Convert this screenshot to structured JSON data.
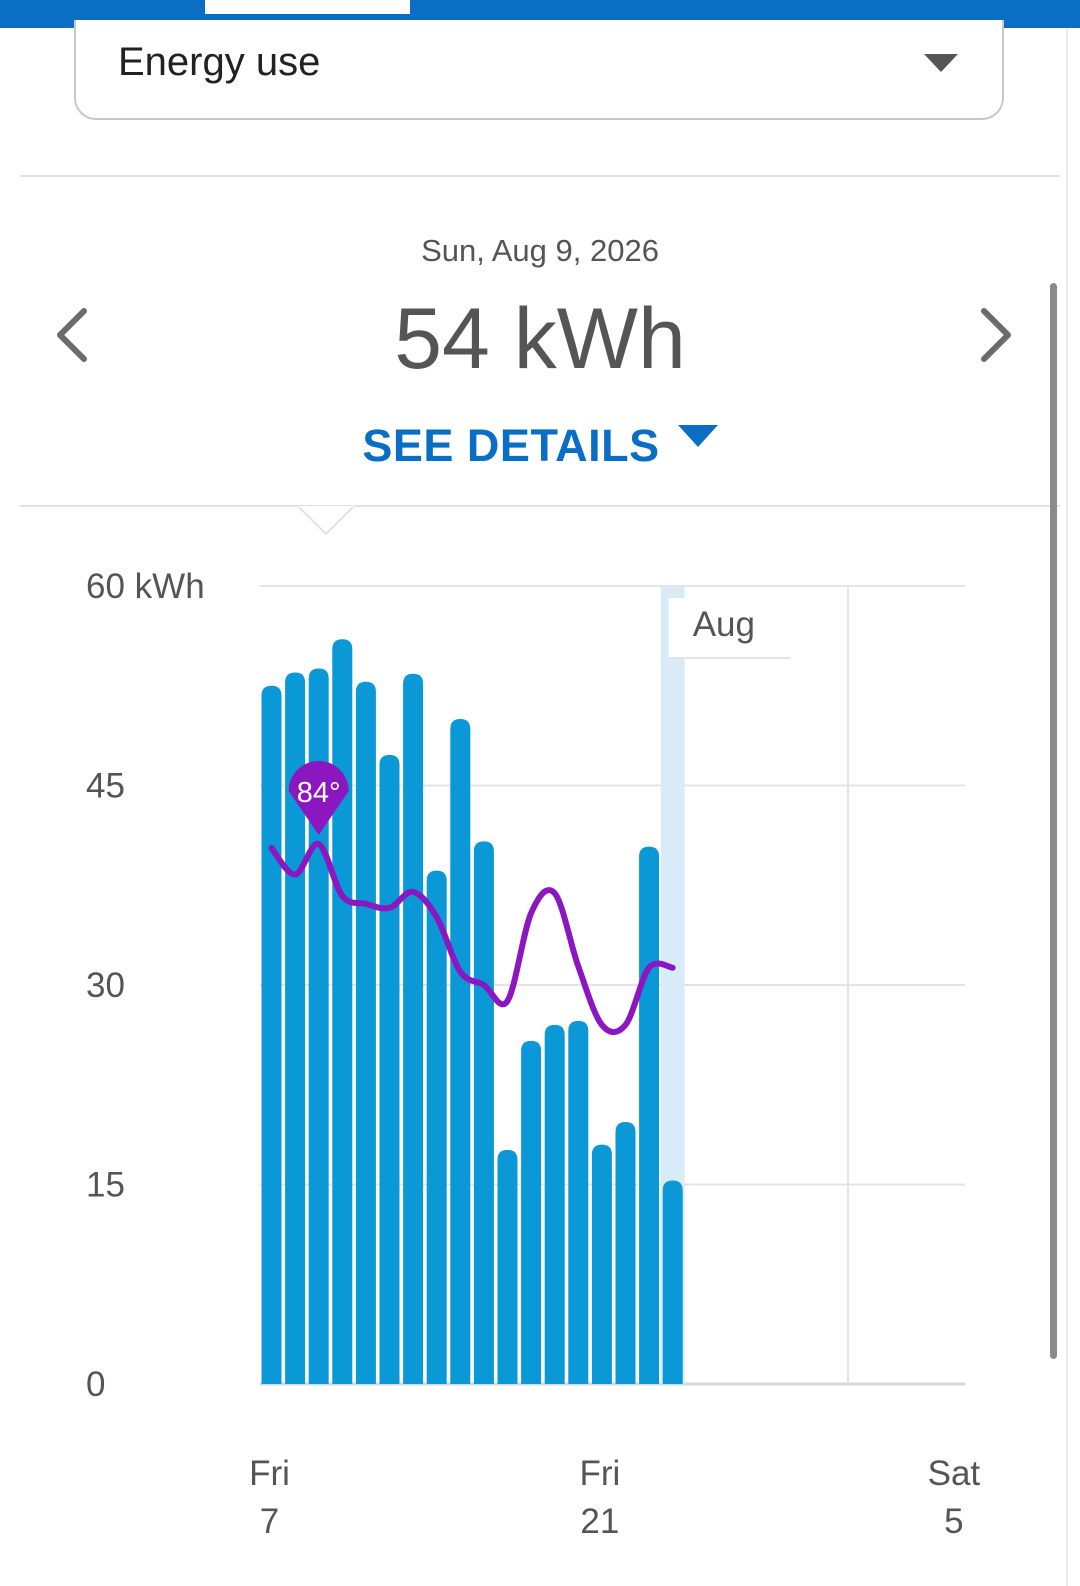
{
  "header": {
    "selector_label": "Energy use"
  },
  "summary": {
    "date": "Sun, Aug 9, 2026",
    "value": "54 kWh",
    "see_details": "SEE DETAILS"
  },
  "colors": {
    "accent": "#0a6fc4",
    "bar": "#0a98d6",
    "temperature_line": "#8c16c0",
    "highlight": "#d7ecf7"
  },
  "icons": {
    "prev": "chevron-left-icon",
    "next": "chevron-right-icon",
    "dropdown": "caret-down-icon"
  },
  "chart_data": {
    "type": "bar",
    "ylabel": "kWh",
    "ylim": [
      0,
      60
    ],
    "yticks": [
      "0",
      "15",
      "30",
      "45",
      "60 kWh"
    ],
    "ytick_values": [
      0,
      15,
      30,
      45,
      60
    ],
    "xticks": [
      {
        "day": "Fri",
        "date": "7",
        "index": 0
      },
      {
        "day": "Fri",
        "date": "21",
        "index": 14
      },
      {
        "day": "Sat",
        "date": "5",
        "index": 29
      }
    ],
    "total_slots": 30,
    "series": [
      {
        "values": [
          52.5,
          53.5,
          53.8,
          56,
          52.8,
          47.3,
          53.4,
          38.6,
          50,
          40.8,
          17.6,
          25.8,
          27,
          27.3,
          18,
          19.7,
          40.4,
          15.3
        ]
      },
      {
        "values": [
          40.3,
          38.3,
          40.6,
          36.7,
          36.1,
          35.8,
          37,
          35.1,
          31,
          30,
          28.8,
          35.4,
          36.9,
          31.4,
          27,
          27,
          31.3,
          31.3
        ]
      }
    ],
    "highlight_index": 17,
    "highlight_label": "Aug",
    "temperature_marker": {
      "label": "84°",
      "index": 2
    }
  }
}
